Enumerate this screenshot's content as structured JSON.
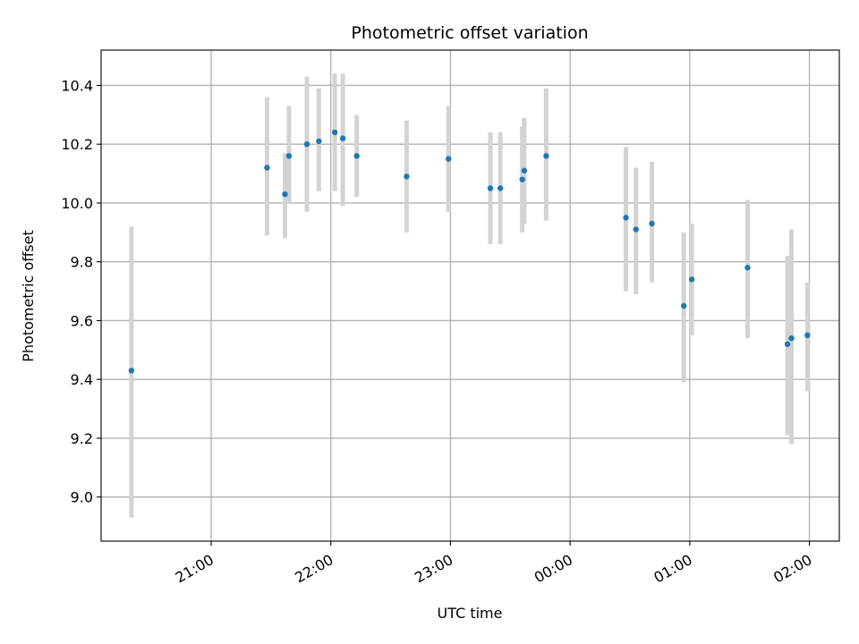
{
  "chart_data": {
    "type": "scatter",
    "title": "Photometric offset variation",
    "xlabel": "UTC time",
    "ylabel": "Photometric offset",
    "x_tick_labels": [
      "21:00",
      "22:00",
      "23:00",
      "00:00",
      "01:00",
      "02:00"
    ],
    "x_tick_hours": [
      21,
      22,
      23,
      24,
      25,
      26
    ],
    "xlim_hours": [
      20.08,
      26.25
    ],
    "y_ticks": [
      "9.0",
      "9.2",
      "9.4",
      "9.6",
      "9.8",
      "10.0",
      "10.2",
      "10.4"
    ],
    "ylim": [
      8.85,
      10.52
    ],
    "grid": true,
    "colors": {
      "points": "#1f77b4",
      "error_bars": "#d3d3d3",
      "grid": "#b0b0b0"
    },
    "points": [
      {
        "x": "20:20",
        "y": 9.43,
        "lo": 8.93,
        "hi": 9.92
      },
      {
        "x": "21:28",
        "y": 10.12,
        "lo": 9.89,
        "hi": 10.36
      },
      {
        "x": "21:37",
        "y": 10.03,
        "lo": 9.88,
        "hi": 10.17
      },
      {
        "x": "21:39",
        "y": 10.16,
        "lo": 10.0,
        "hi": 10.33
      },
      {
        "x": "21:48",
        "y": 10.2,
        "lo": 9.97,
        "hi": 10.43
      },
      {
        "x": "21:54",
        "y": 10.21,
        "lo": 10.04,
        "hi": 10.39
      },
      {
        "x": "22:02",
        "y": 10.24,
        "lo": 10.04,
        "hi": 10.44
      },
      {
        "x": "22:06",
        "y": 10.22,
        "lo": 9.99,
        "hi": 10.44
      },
      {
        "x": "22:13",
        "y": 10.16,
        "lo": 10.02,
        "hi": 10.3
      },
      {
        "x": "22:38",
        "y": 10.09,
        "lo": 9.9,
        "hi": 10.28
      },
      {
        "x": "22:59",
        "y": 10.15,
        "lo": 9.97,
        "hi": 10.33
      },
      {
        "x": "23:20",
        "y": 10.05,
        "lo": 9.86,
        "hi": 10.24
      },
      {
        "x": "23:25",
        "y": 10.05,
        "lo": 9.86,
        "hi": 10.24
      },
      {
        "x": "23:36",
        "y": 10.08,
        "lo": 9.9,
        "hi": 10.26
      },
      {
        "x": "23:37",
        "y": 10.11,
        "lo": 9.93,
        "hi": 10.29
      },
      {
        "x": "23:48",
        "y": 10.16,
        "lo": 9.94,
        "hi": 10.39
      },
      {
        "x": "00:28",
        "y": 9.95,
        "lo": 9.7,
        "hi": 10.19
      },
      {
        "x": "00:33",
        "y": 9.91,
        "lo": 9.69,
        "hi": 10.12
      },
      {
        "x": "00:41",
        "y": 9.93,
        "lo": 9.73,
        "hi": 10.14
      },
      {
        "x": "00:57",
        "y": 9.65,
        "lo": 9.39,
        "hi": 9.9
      },
      {
        "x": "01:01",
        "y": 9.74,
        "lo": 9.55,
        "hi": 9.93
      },
      {
        "x": "01:29",
        "y": 9.78,
        "lo": 9.54,
        "hi": 10.01
      },
      {
        "x": "01:49",
        "y": 9.52,
        "lo": 9.21,
        "hi": 9.82
      },
      {
        "x": "01:51",
        "y": 9.54,
        "lo": 9.18,
        "hi": 9.91
      },
      {
        "x": "01:59",
        "y": 9.55,
        "lo": 9.36,
        "hi": 9.73
      }
    ]
  }
}
